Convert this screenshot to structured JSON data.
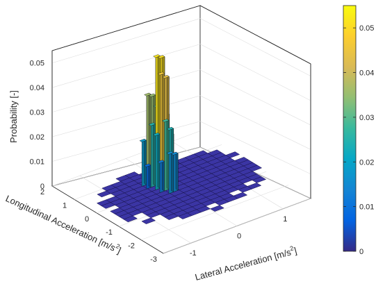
{
  "chart_data": {
    "type": "bar3d",
    "xlabel": "Lateral Acceleration [m/s",
    "xlabel_sup": "2",
    "xlabel_end": "]",
    "ylabel": "Longitudinal Acceleration [m/s",
    "ylabel_sup": "2",
    "ylabel_end": "]",
    "zlabel": "Probability [-]",
    "xticks": [
      "-1",
      "0",
      "1"
    ],
    "yticks": [
      "2",
      "1",
      "0",
      "-1",
      "-2",
      "-3"
    ],
    "zticks": [
      "0",
      "0.01",
      "0.02",
      "0.03",
      "0.04",
      "0.05"
    ],
    "xlim": [
      -1.6,
      1.6
    ],
    "ylim": [
      -3,
      2
    ],
    "zlim": [
      0,
      0.055
    ],
    "grid": true,
    "colormap": "parula",
    "colorbar": {
      "ticks": [
        "0",
        "0.01",
        "0.02",
        "0.03",
        "0.04",
        "0.05"
      ],
      "range": [
        0,
        0.055
      ],
      "colors": [
        "#352a87",
        "#0363e1",
        "#1485d4",
        "#06a7c6",
        "#38b99e",
        "#92bf73",
        "#d9ba56",
        "#fcce2e",
        "#f9fb0e"
      ]
    },
    "peak_bars": [
      {
        "x": -0.15,
        "y": 0.3,
        "z": 0.052
      },
      {
        "x": -0.05,
        "y": 0.3,
        "z": 0.051
      },
      {
        "x": -0.15,
        "y": 0.1,
        "z": 0.046
      },
      {
        "x": -0.05,
        "y": 0.1,
        "z": 0.044
      },
      {
        "x": -0.25,
        "y": 0.5,
        "z": 0.036
      },
      {
        "x": -0.15,
        "y": 0.5,
        "z": 0.035
      },
      {
        "x": -0.05,
        "y": 0.5,
        "z": 0.03
      },
      {
        "x": 0.05,
        "y": 0.3,
        "z": 0.027
      },
      {
        "x": -0.25,
        "y": 0.3,
        "z": 0.025
      },
      {
        "x": -0.15,
        "y": -0.1,
        "z": 0.028
      },
      {
        "x": -0.05,
        "y": -0.1,
        "z": 0.024
      },
      {
        "x": -0.25,
        "y": 0.1,
        "z": 0.022
      },
      {
        "x": 0.05,
        "y": 0.1,
        "z": 0.02
      },
      {
        "x": -0.35,
        "y": 0.5,
        "z": 0.018
      },
      {
        "x": -0.15,
        "y": -0.3,
        "z": 0.016
      },
      {
        "x": -0.05,
        "y": -0.3,
        "z": 0.015
      },
      {
        "x": 0.05,
        "y": 0.5,
        "z": 0.013
      },
      {
        "x": -0.25,
        "y": -0.1,
        "z": 0.012
      },
      {
        "x": 0.15,
        "y": 0.3,
        "z": 0.01
      },
      {
        "x": -0.35,
        "y": 0.3,
        "z": 0.009
      }
    ]
  }
}
